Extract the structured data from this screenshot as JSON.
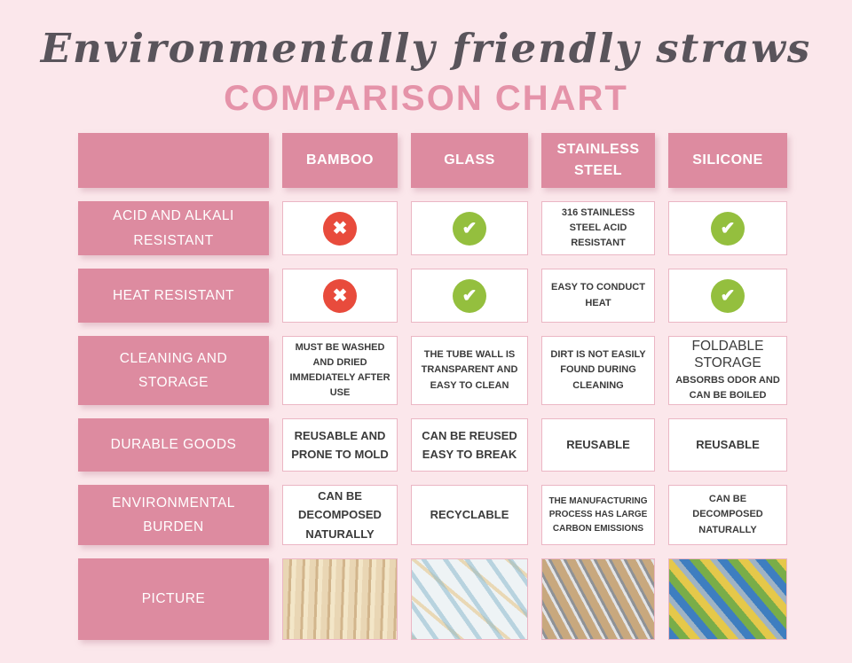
{
  "header": {
    "script_title": "Environmentally friendly straws",
    "main_title": "COMPARISON CHART"
  },
  "icons": {
    "cross_glyph": "✖",
    "check_glyph": "✔"
  },
  "colors": {
    "background": "#FBE7EB",
    "cell_pink": "#DD8BA0",
    "title_pink": "#E593A9",
    "check_green": "#94BF3E",
    "cross_red": "#E84B3C"
  },
  "chart_data": {
    "type": "table",
    "title": "Environmentally friendly straws",
    "subtitle": "COMPARISON CHART",
    "columns": [
      "",
      "BAMBOO",
      "GLASS",
      "STAINLESS STEEL",
      "SILICONE"
    ],
    "rows": [
      {
        "label": "ACID AND ALKALI RESISTANT",
        "cells": [
          {
            "icon": "cross-icon"
          },
          {
            "icon": "check-icon"
          },
          {
            "text": "316 STAINLESS STEEL ACID RESISTANT"
          },
          {
            "icon": "check-icon"
          }
        ]
      },
      {
        "label": "HEAT RESISTANT",
        "cells": [
          {
            "icon": "cross-icon"
          },
          {
            "icon": "check-icon"
          },
          {
            "text": "EASY TO CONDUCT HEAT"
          },
          {
            "icon": "check-icon"
          }
        ]
      },
      {
        "label": "CLEANING AND STORAGE",
        "cells": [
          {
            "text": "MUST BE WASHED AND DRIED IMMEDIATELY AFTER USE"
          },
          {
            "text": "THE TUBE WALL IS TRANSPARENT AND EASY TO CLEAN"
          },
          {
            "text": "DIRT IS NOT EASILY FOUND DURING CLEANING"
          },
          {
            "title": "FOLDABLE STORAGE",
            "text": "ABSORBS ODOR AND CAN BE BOILED"
          }
        ]
      },
      {
        "label": "DURABLE GOODS",
        "cells": [
          {
            "text": "REUSABLE AND PRONE TO MOLD"
          },
          {
            "text": "CAN BE REUSED EASY TO BREAK"
          },
          {
            "text": "REUSABLE"
          },
          {
            "text": "REUSABLE"
          }
        ]
      },
      {
        "label": "ENVIRONMENTAL BURDEN",
        "cells": [
          {
            "text": "CAN BE DECOMPOSED NATURALLY"
          },
          {
            "text": "RECYCLABLE"
          },
          {
            "text": "THE MANUFACTURING PROCESS HAS LARGE CARBON EMISSIONS"
          },
          {
            "text": "CAN BE DECOMPOSED NATURALLY"
          }
        ]
      },
      {
        "label": "PICTURE",
        "cells": [
          {
            "image": "bamboo-straws"
          },
          {
            "image": "glass-straws"
          },
          {
            "image": "stainless-steel-straws"
          },
          {
            "image": "silicone-straws"
          }
        ]
      }
    ]
  }
}
